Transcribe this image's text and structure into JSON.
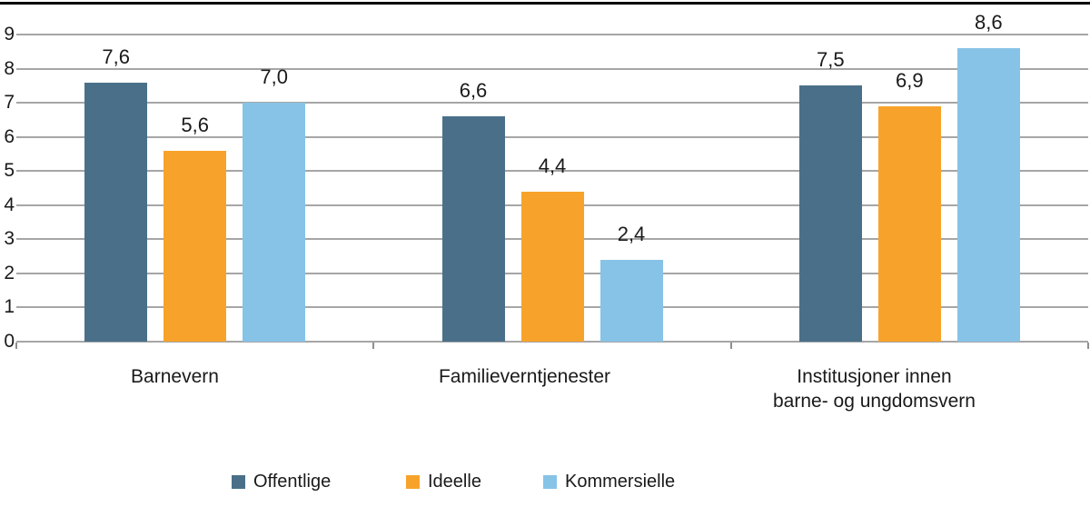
{
  "figure": {
    "background": "#FFFFFF",
    "top_rule_color": "#000000",
    "gridline_color": "#A6A6A6",
    "axis_tick_color": "#8F8F8F",
    "text_color": "#1A1A1A"
  },
  "chart_data": {
    "type": "bar",
    "title": "",
    "xlabel": "",
    "ylabel": "",
    "categories": [
      {
        "lines": [
          "Barnevern"
        ]
      },
      {
        "lines": [
          "Familieverntjenester"
        ]
      },
      {
        "lines": [
          "Institusjoner innen",
          "barne- og ungdomsvern"
        ]
      }
    ],
    "series": [
      {
        "name": "Offentlige",
        "color": "#4A7089",
        "values": [
          7.6,
          6.6,
          7.5
        ],
        "value_labels": [
          "7,6",
          "6,6",
          "7,5"
        ]
      },
      {
        "name": "Ideelle",
        "color": "#F7A32B",
        "values": [
          5.6,
          4.4,
          6.9
        ],
        "value_labels": [
          "5,6",
          "4,4",
          "6,9"
        ]
      },
      {
        "name": "Kommersielle",
        "color": "#87C3E7",
        "values": [
          7.0,
          2.4,
          8.6
        ],
        "value_labels": [
          "7,0",
          "2,4",
          "8,6"
        ]
      }
    ],
    "ylim": [
      0,
      9
    ],
    "yticks": [
      0,
      1,
      2,
      3,
      4,
      5,
      6,
      7,
      8,
      9
    ],
    "ytick_labels": [
      "0",
      "1",
      "2",
      "3",
      "4",
      "5",
      "6",
      "7",
      "8",
      "9"
    ],
    "grid": true,
    "decimal_separator": ",",
    "legend_position": "bottom"
  }
}
